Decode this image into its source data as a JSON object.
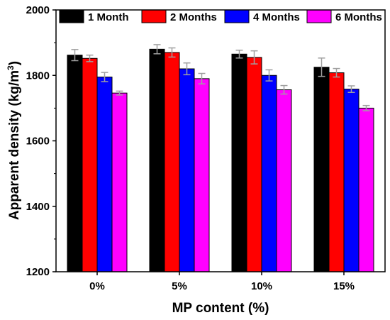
{
  "chart_data": {
    "type": "bar",
    "categories": [
      "0%",
      "5%",
      "10%",
      "15%"
    ],
    "xlabel": "MP content (%)",
    "ylabel_main": "Apparent density (kg/m",
    "ylabel_sup": "3",
    "ylabel_close": ")",
    "ylim": [
      1200,
      2000
    ],
    "yticks": [
      "1200",
      "1400",
      "1600",
      "1800",
      "2000"
    ],
    "legend_position": "top",
    "series": [
      {
        "name": "1 Month",
        "color": "#000000",
        "values": [
          1862,
          1880,
          1865,
          1825
        ],
        "errors": [
          17,
          14,
          12,
          28
        ]
      },
      {
        "name": "2 Months",
        "color": "#ff0000",
        "values": [
          1852,
          1870,
          1855,
          1808
        ],
        "errors": [
          10,
          14,
          20,
          13
        ]
      },
      {
        "name": "4 Months",
        "color": "#0000ff",
        "values": [
          1795,
          1820,
          1800,
          1758
        ],
        "errors": [
          14,
          18,
          17,
          10
        ]
      },
      {
        "name": "6 Months",
        "color": "#ff00ff",
        "values": [
          1746,
          1790,
          1756,
          1700
        ],
        "errors": [
          6,
          16,
          13,
          8
        ]
      }
    ]
  }
}
